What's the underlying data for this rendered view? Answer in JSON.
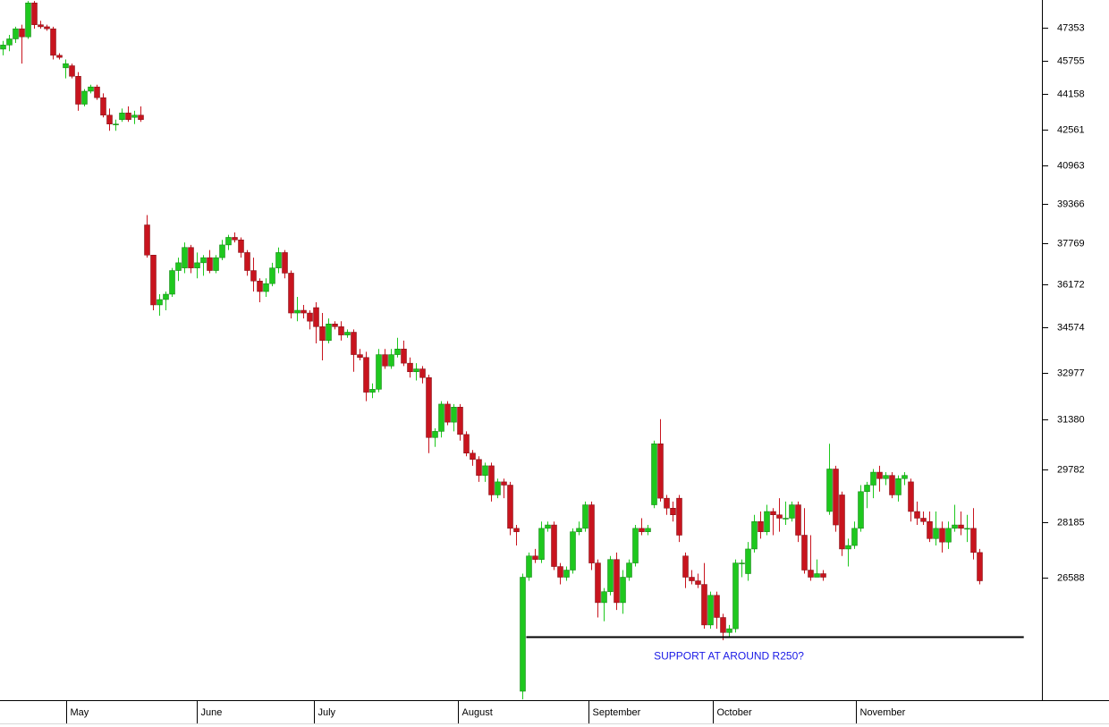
{
  "chart_data": {
    "type": "candlestick",
    "log_scale": true,
    "up_color": "#1ec81e",
    "down_color": "#c8141e",
    "xlim": [
      -0.5,
      166
    ],
    "xticks": [
      {
        "value": 10.1,
        "label": "May"
      },
      {
        "value": 30.9,
        "label": "June"
      },
      {
        "value": 49.6,
        "label": "July"
      },
      {
        "value": 72.7,
        "label": "August"
      },
      {
        "value": 93.6,
        "label": "September"
      },
      {
        "value": 113.4,
        "label": "October"
      },
      {
        "value": 136.3,
        "label": "November"
      }
    ],
    "ylim": [
      23380,
      48750
    ],
    "yticks": [
      26588,
      28185,
      29782,
      31380,
      32977,
      34574,
      36172,
      37769,
      39366,
      40963,
      42561,
      44158,
      45755,
      47353
    ],
    "open": [
      46300,
      46500,
      46800,
      47300,
      46900,
      48600,
      47500,
      47400,
      47300,
      46000,
      45400,
      45500,
      45000,
      43700,
      44300,
      44500,
      44000,
      43200,
      42800,
      43000,
      43300,
      43100,
      43200,
      38500,
      37300,
      35400,
      35600,
      35800,
      36700,
      36800,
      37600,
      36800,
      37000,
      37200,
      36700,
      37200,
      37700,
      38000,
      37900,
      37400,
      36700,
      36300,
      35900,
      36200,
      36800,
      37400,
      36600,
      35100,
      35200,
      35100,
      35300,
      34600,
      34100,
      34700,
      34600,
      34300,
      34400,
      33600,
      33500,
      32300,
      32400,
      33600,
      33200,
      33600,
      33800,
      33300,
      33000,
      33100,
      32800,
      30800,
      31000,
      31900,
      31300,
      31800,
      30900,
      30300,
      30100,
      29600,
      29900,
      29000,
      29400,
      29300,
      28000,
      23600,
      26600,
      27200,
      27100,
      28000,
      28100,
      26900,
      26600,
      26800,
      27900,
      28000,
      28700,
      27000,
      25900,
      26200,
      27100,
      25900,
      26600,
      27000,
      28000,
      27900,
      28700,
      30600,
      28900,
      28600,
      28900,
      27200,
      26600,
      26500,
      26400,
      25300,
      26100,
      25500,
      25100,
      25200,
      27000,
      26700,
      27400,
      28200,
      27900,
      28500,
      28400,
      28300,
      28300,
      28700,
      27800,
      26800,
      26600,
      26700,
      28500,
      29800,
      29000,
      27400,
      27500,
      28000,
      29100,
      29300,
      29700,
      29500,
      29600,
      29000,
      29500,
      29400,
      28500,
      28300,
      28200,
      27700,
      28000,
      27600,
      28000,
      28100,
      28000,
      28000,
      27300
    ],
    "high": [
      46700,
      47000,
      47400,
      47500,
      48700,
      48700,
      47700,
      47500,
      47400,
      46100,
      45800,
      45600,
      45200,
      44400,
      44600,
      44600,
      44200,
      43500,
      43000,
      43500,
      43600,
      43400,
      43600,
      38900,
      37300,
      35800,
      35900,
      36800,
      37200,
      37800,
      37700,
      37400,
      37300,
      37500,
      37300,
      37900,
      38100,
      38200,
      38000,
      37500,
      37200,
      36400,
      36400,
      37000,
      37600,
      37500,
      36700,
      35700,
      35400,
      35200,
      35500,
      35100,
      34900,
      34800,
      34800,
      34500,
      34500,
      33800,
      33700,
      32600,
      33800,
      33800,
      33800,
      34200,
      34100,
      33500,
      33300,
      33200,
      32900,
      31100,
      32000,
      32000,
      31900,
      31900,
      31000,
      30400,
      30200,
      30000,
      30000,
      29500,
      29500,
      29400,
      28100,
      26700,
      27300,
      27400,
      28200,
      28200,
      28200,
      27000,
      26900,
      28000,
      28200,
      28800,
      28800,
      27100,
      26300,
      27200,
      27300,
      26800,
      27100,
      28100,
      28300,
      28100,
      30700,
      31400,
      29000,
      28800,
      29000,
      27300,
      26800,
      26700,
      27000,
      26200,
      26200,
      25600,
      25300,
      27100,
      27100,
      27600,
      28400,
      28500,
      28700,
      28600,
      28900,
      28800,
      28800,
      28800,
      28600,
      27800,
      27100,
      26800,
      30600,
      29900,
      29100,
      27700,
      28200,
      29300,
      29400,
      29800,
      29900,
      29700,
      29700,
      29600,
      29700,
      29500,
      28800,
      28500,
      28500,
      28500,
      28200,
      28200,
      28700,
      28500,
      28400,
      28600,
      27400
    ],
    "low": [
      46000,
      46200,
      46600,
      45600,
      46800,
      47300,
      47300,
      47200,
      45800,
      45800,
      44900,
      44900,
      43400,
      43600,
      44200,
      43900,
      43100,
      42500,
      42500,
      42900,
      42900,
      42800,
      42900,
      37200,
      35200,
      35000,
      35200,
      35700,
      36300,
      36600,
      36600,
      36400,
      36500,
      36600,
      36600,
      37100,
      37500,
      37800,
      37200,
      36500,
      35900,
      35500,
      35700,
      36100,
      36600,
      36400,
      34900,
      34800,
      34900,
      34500,
      34000,
      33400,
      34000,
      34500,
      34100,
      34200,
      33000,
      33400,
      32000,
      32100,
      32300,
      33100,
      33100,
      33500,
      33200,
      32800,
      32700,
      32600,
      30300,
      30500,
      30800,
      31200,
      31000,
      30700,
      30200,
      29900,
      29400,
      29400,
      28800,
      28900,
      28900,
      27800,
      27500,
      23400,
      26500,
      27000,
      27000,
      27900,
      26800,
      26400,
      26500,
      26700,
      27800,
      27900,
      26800,
      25500,
      25400,
      26100,
      25700,
      25600,
      26500,
      26900,
      27800,
      27800,
      28600,
      28800,
      28400,
      28200,
      27600,
      26300,
      26400,
      26300,
      25200,
      25200,
      25200,
      24900,
      25000,
      25100,
      26600,
      26500,
      27300,
      27700,
      27800,
      27800,
      27900,
      28100,
      28200,
      27600,
      26700,
      26500,
      26600,
      26500,
      28400,
      27900,
      27200,
      26900,
      27400,
      27900,
      28600,
      28900,
      29100,
      29300,
      28900,
      28800,
      29300,
      28200,
      28100,
      28100,
      27600,
      27500,
      27300,
      27400,
      27900,
      27800,
      27600,
      27100,
      26400
    ],
    "close": [
      46500,
      46800,
      47300,
      46900,
      48600,
      47500,
      47400,
      47300,
      46000,
      45900,
      45600,
      45000,
      43700,
      44300,
      44500,
      44000,
      43200,
      42800,
      42800,
      43300,
      43000,
      43200,
      43000,
      37300,
      35400,
      35600,
      35800,
      36700,
      37000,
      37600,
      36800,
      37000,
      37200,
      36700,
      37200,
      37700,
      38000,
      37900,
      37400,
      36700,
      36300,
      35900,
      36200,
      36800,
      37400,
      36600,
      35100,
      35200,
      35100,
      34800,
      34600,
      34100,
      34700,
      34600,
      34300,
      34400,
      33600,
      33500,
      32300,
      32400,
      33600,
      33200,
      33600,
      33800,
      33300,
      33000,
      33100,
      32800,
      30800,
      31000,
      31900,
      31300,
      31800,
      30900,
      30300,
      30100,
      29600,
      29900,
      29000,
      29400,
      29300,
      28000,
      27900,
      26600,
      27200,
      27100,
      28000,
      28100,
      26900,
      26600,
      26800,
      27900,
      28000,
      28700,
      27000,
      25900,
      26200,
      27100,
      25900,
      26600,
      27000,
      28000,
      27900,
      28000,
      30600,
      28900,
      28600,
      28400,
      27800,
      26600,
      26500,
      26400,
      25300,
      26100,
      25500,
      25100,
      25200,
      27000,
      27000,
      27400,
      28200,
      27900,
      28500,
      28400,
      28300,
      28300,
      28700,
      27800,
      26800,
      26600,
      26700,
      26600,
      29800,
      28100,
      27400,
      27500,
      28000,
      29100,
      29300,
      29700,
      29500,
      29600,
      29000,
      29500,
      29600,
      28500,
      28300,
      28200,
      27700,
      28000,
      27600,
      28000,
      28100,
      28000,
      28000,
      27300,
      26500
    ],
    "support": {
      "label": "SUPPORT AT AROUND R250?",
      "value": 25000,
      "from": 83.6,
      "to": 163.1,
      "color": "#1a1ae6"
    }
  }
}
